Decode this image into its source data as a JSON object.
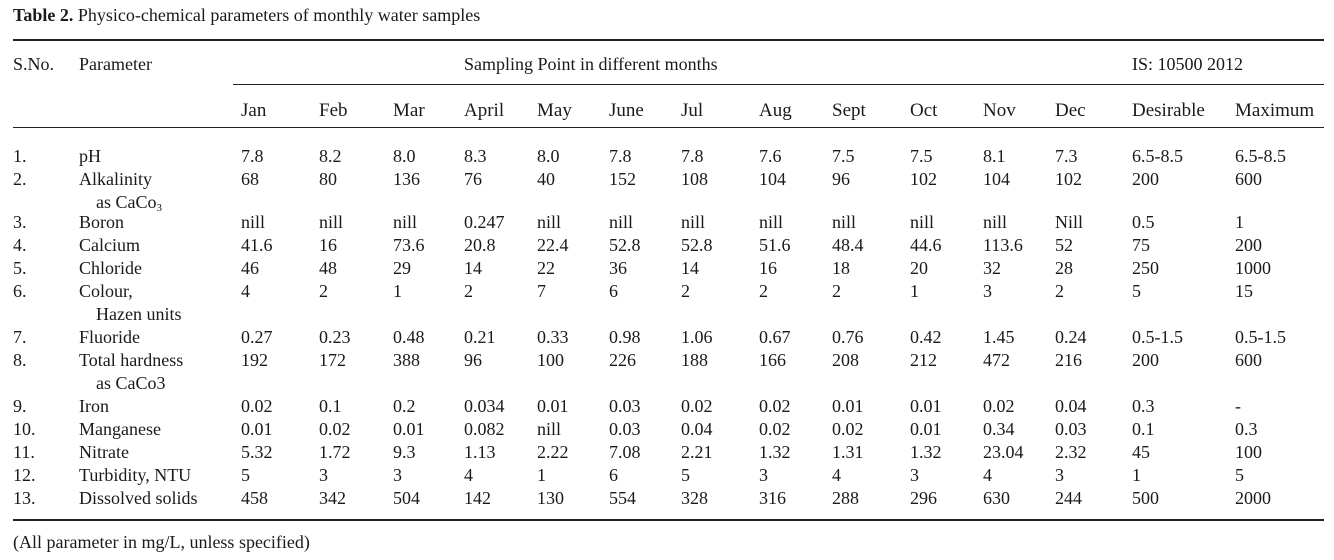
{
  "caption": {
    "label": "Table 2.",
    "text": "Physico-chemical parameters of monthly water samples"
  },
  "header": {
    "sno": "S.No.",
    "parameter": "Parameter",
    "group": "Sampling Point in different months",
    "standard": "IS: 10500 2012",
    "months": [
      "Jan",
      "Feb",
      "Mar",
      "April",
      "May",
      "June",
      "Jul",
      "Aug",
      "Sept",
      "Oct",
      "Nov",
      "Dec"
    ],
    "desirable": "Desirable",
    "maximum": "Maximum"
  },
  "rows": [
    {
      "sno": "1.",
      "param": "pH",
      "param2": "",
      "values": [
        "7.8",
        "8.2",
        "8.0",
        "8.3",
        "8.0",
        "7.8",
        "7.8",
        "7.6",
        "7.5",
        "7.5",
        "8.1",
        "7.3"
      ],
      "desirable": "6.5-8.5",
      "maximum": "6.5-8.5"
    },
    {
      "sno": "2.",
      "param": "Alkalinity",
      "param2": "as CaCo",
      "param2_sub": "3",
      "values": [
        "68",
        "80",
        "136",
        "76",
        "40",
        "152",
        "108",
        "104",
        "96",
        "102",
        "104",
        "102"
      ],
      "desirable": "200",
      "maximum": "600"
    },
    {
      "sno": "3.",
      "param": "Boron",
      "param2": "",
      "values": [
        "nill",
        "nill",
        "nill",
        "0.247",
        "nill",
        "nill",
        "nill",
        "nill",
        "nill",
        "nill",
        "nill",
        "Nill"
      ],
      "desirable": "0.5",
      "maximum": "1"
    },
    {
      "sno": "4.",
      "param": "Calcium",
      "param2": "",
      "values": [
        "41.6",
        "16",
        "73.6",
        "20.8",
        "22.4",
        "52.8",
        "52.8",
        "51.6",
        "48.4",
        "44.6",
        "113.6",
        "52"
      ],
      "desirable": "75",
      "maximum": "200"
    },
    {
      "sno": "5.",
      "param": "Chloride",
      "param2": "",
      "values": [
        "46",
        "48",
        "29",
        "14",
        "22",
        "36",
        "14",
        "16",
        "18",
        "20",
        "32",
        "28"
      ],
      "desirable": "250",
      "maximum": "1000"
    },
    {
      "sno": "6.",
      "param": "Colour,",
      "param2": "Hazen units",
      "values": [
        "4",
        "2",
        "1",
        "2",
        "7",
        "6",
        "2",
        "2",
        "2",
        "1",
        "3",
        "2"
      ],
      "desirable": "5",
      "maximum": "15"
    },
    {
      "sno": "7.",
      "param": "Fluoride",
      "param2": "",
      "values": [
        "0.27",
        "0.23",
        "0.48",
        "0.21",
        "0.33",
        "0.98",
        "1.06",
        "0.67",
        "0.76",
        "0.42",
        "1.45",
        "0.24"
      ],
      "desirable": "0.5-1.5",
      "maximum": "0.5-1.5"
    },
    {
      "sno": "8.",
      "param": "Total hardness",
      "param2": "as  CaCo3",
      "values": [
        "192",
        "172",
        "388",
        "96",
        "100",
        "226",
        "188",
        "166",
        "208",
        "212",
        "472",
        "216"
      ],
      "desirable": "200",
      "maximum": "600"
    },
    {
      "sno": "9.",
      "param": "Iron",
      "param2": "",
      "values": [
        "0.02",
        "0.1",
        "0.2",
        "0.034",
        "0.01",
        "0.03",
        "0.02",
        "0.02",
        "0.01",
        "0.01",
        "0.02",
        "0.04"
      ],
      "desirable": "0.3",
      "maximum": "-"
    },
    {
      "sno": "10.",
      "param": "Manganese",
      "param2": "",
      "values": [
        "0.01",
        "0.02",
        "0.01",
        "0.082",
        "nill",
        "0.03",
        "0.04",
        "0.02",
        "0.02",
        "0.01",
        "0.34",
        "0.03"
      ],
      "desirable": "0.1",
      "maximum": "0.3"
    },
    {
      "sno": "11.",
      "param": "Nitrate",
      "param2": "",
      "values": [
        "5.32",
        "1.72",
        "9.3",
        "1.13",
        "2.22",
        "7.08",
        "2.21",
        "1.32",
        "1.31",
        "1.32",
        "23.04",
        "2.32"
      ],
      "desirable": "45",
      "maximum": "100"
    },
    {
      "sno": "12.",
      "param": "Turbidity, NTU",
      "param2": "",
      "values": [
        "5",
        "3",
        "3",
        "4",
        "1",
        "6",
        "5",
        "3",
        "4",
        "3",
        "4",
        "3"
      ],
      "desirable": "1",
      "maximum": "5"
    },
    {
      "sno": "13.",
      "param": "Dissolved solids",
      "param2": "",
      "values": [
        "458",
        "342",
        "504",
        "142",
        "130",
        "554",
        "328",
        "316",
        "288",
        "296",
        "630",
        "244"
      ],
      "desirable": "500",
      "maximum": "2000"
    }
  ],
  "footnote": "(All parameter in mg/L, unless specified)"
}
